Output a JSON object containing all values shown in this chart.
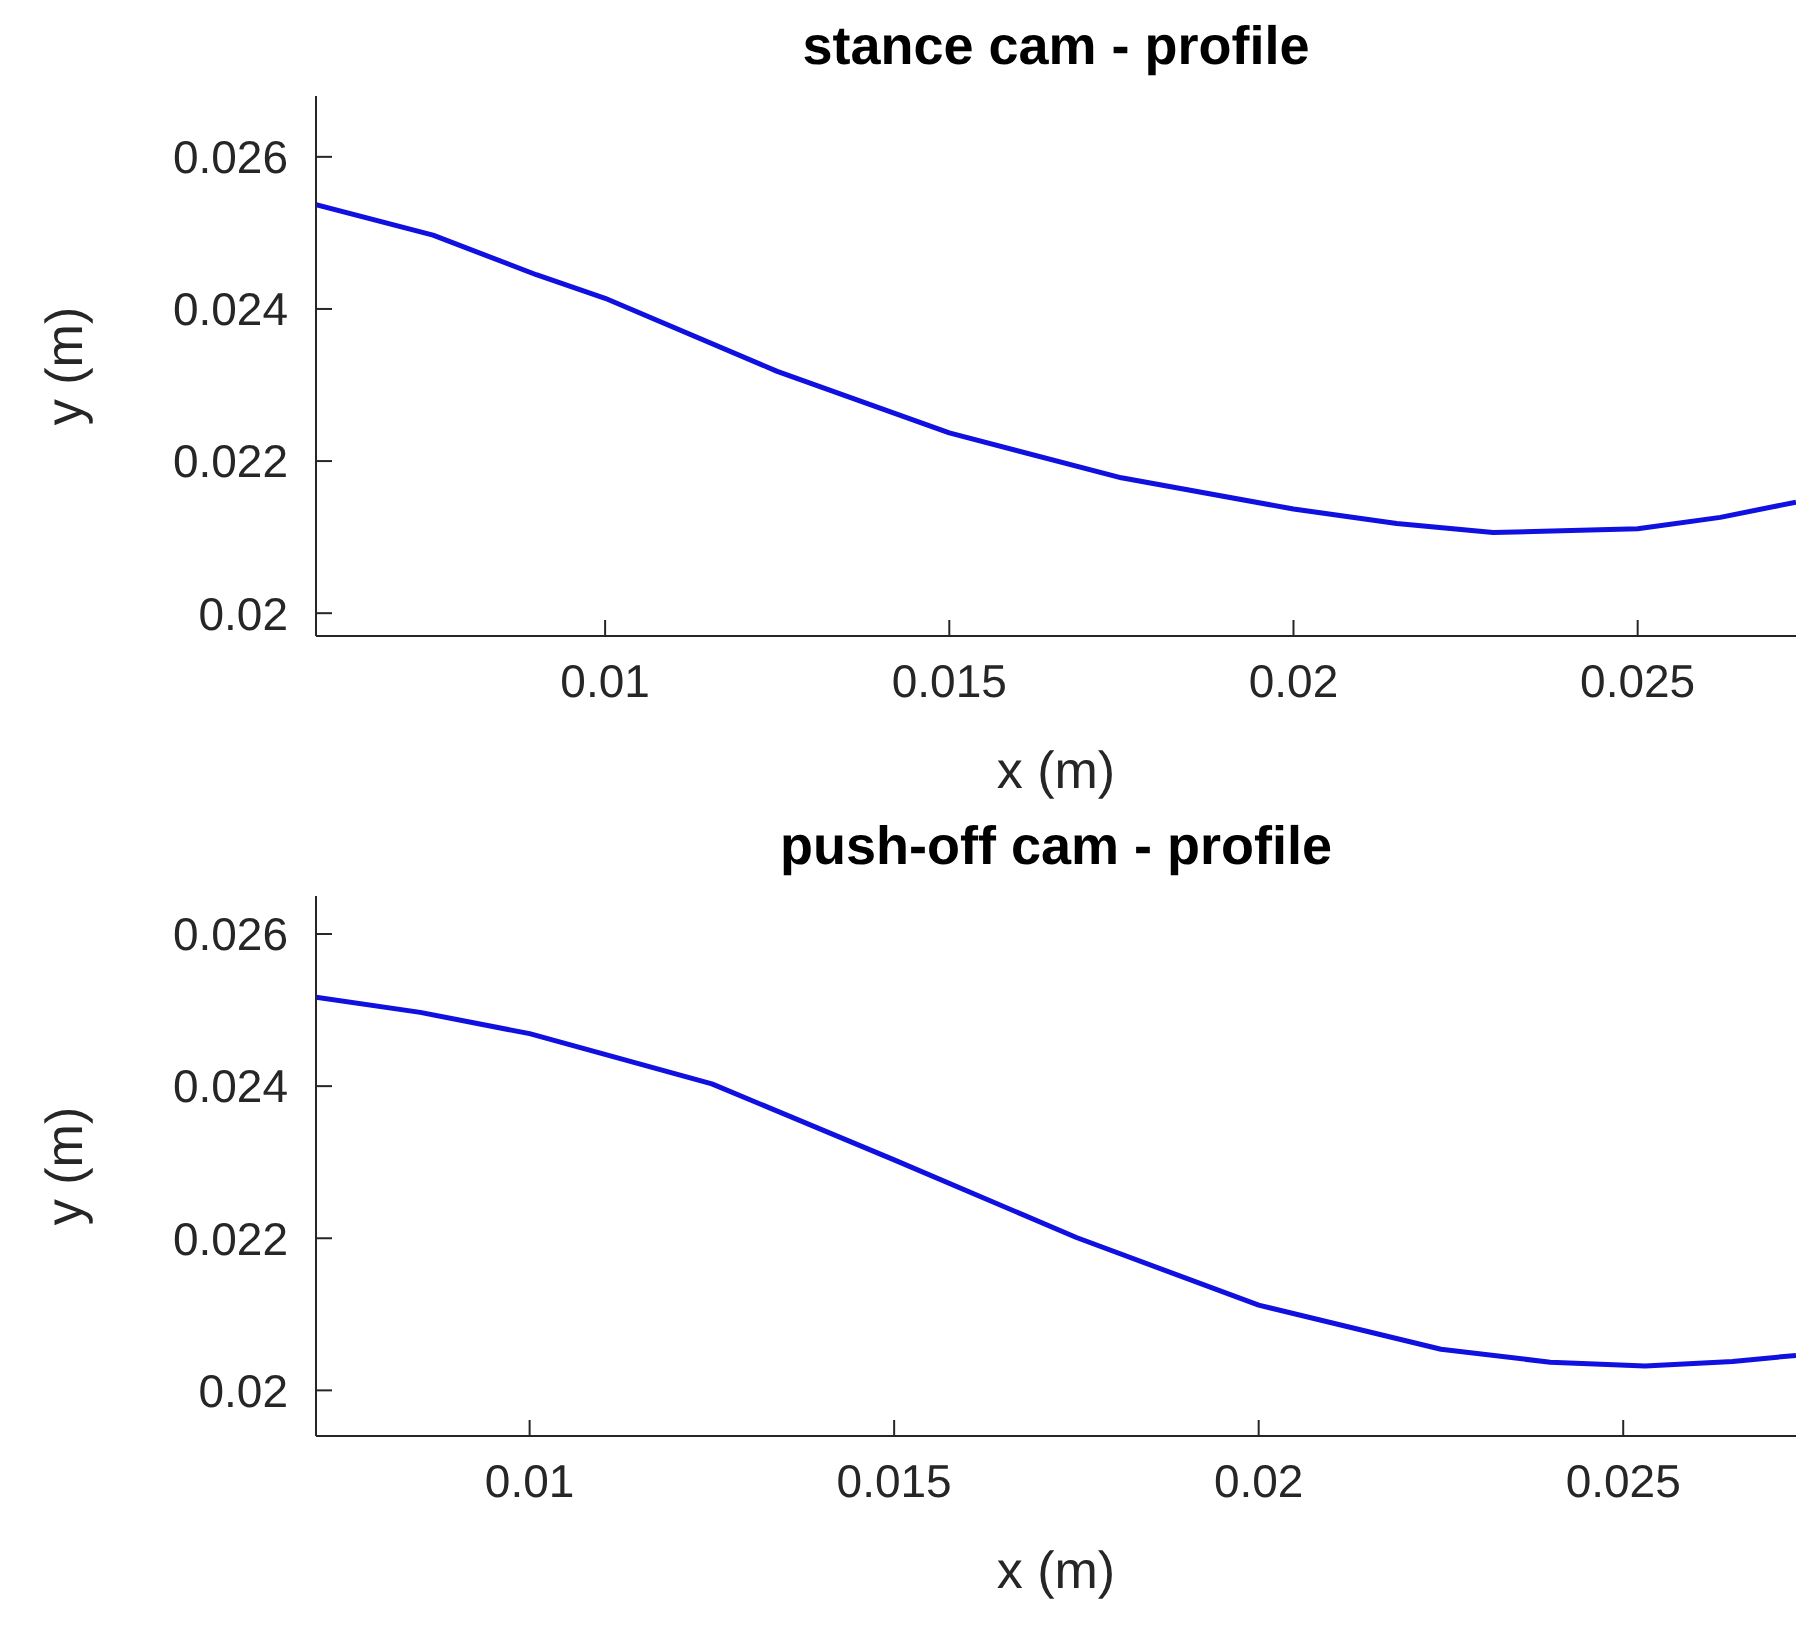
{
  "chart_data": [
    {
      "type": "line",
      "title": "stance cam - profile",
      "xlabel": "x (m)",
      "ylabel": "y (m)",
      "xlim": [
        0.0058,
        0.0273
      ],
      "xticks": [
        0.01,
        0.015,
        0.02,
        0.025
      ],
      "ylim": [
        0.0197,
        0.0268
      ],
      "yticks": [
        0.02,
        0.022,
        0.024,
        0.026
      ],
      "grid": false,
      "marker": "none",
      "line_style": "solid",
      "series": [
        {
          "color": "#1010e0",
          "x": [
            0.0058,
            0.0075,
            0.009,
            0.01,
            0.0125,
            0.015,
            0.0175,
            0.02,
            0.0215,
            0.0229,
            0.025,
            0.0262,
            0.0273
          ],
          "values": [
            0.02537,
            0.02497,
            0.02445,
            0.02414,
            0.02318,
            0.02237,
            0.02178,
            0.02137,
            0.02118,
            0.02106,
            0.02111,
            0.02126,
            0.02146
          ]
        }
      ]
    },
    {
      "type": "line",
      "title": "push-off cam - profile",
      "xlabel": "x (m)",
      "ylabel": "y (m)",
      "xlim": [
        0.00707,
        0.02737
      ],
      "xticks": [
        0.01,
        0.015,
        0.02,
        0.025
      ],
      "ylim": [
        0.0194,
        0.0265
      ],
      "yticks": [
        0.02,
        0.022,
        0.024,
        0.026
      ],
      "grid": false,
      "marker": "none",
      "line_style": "solid",
      "series": [
        {
          "color": "#1010e0",
          "x": [
            0.00707,
            0.0085,
            0.01,
            0.0125,
            0.015,
            0.0175,
            0.02,
            0.0225,
            0.024,
            0.0253,
            0.0265,
            0.02737
          ],
          "values": [
            0.02517,
            0.02497,
            0.02469,
            0.02403,
            0.02303,
            0.02201,
            0.02112,
            0.02054,
            0.02037,
            0.02032,
            0.02038,
            0.02046
          ]
        }
      ]
    }
  ]
}
